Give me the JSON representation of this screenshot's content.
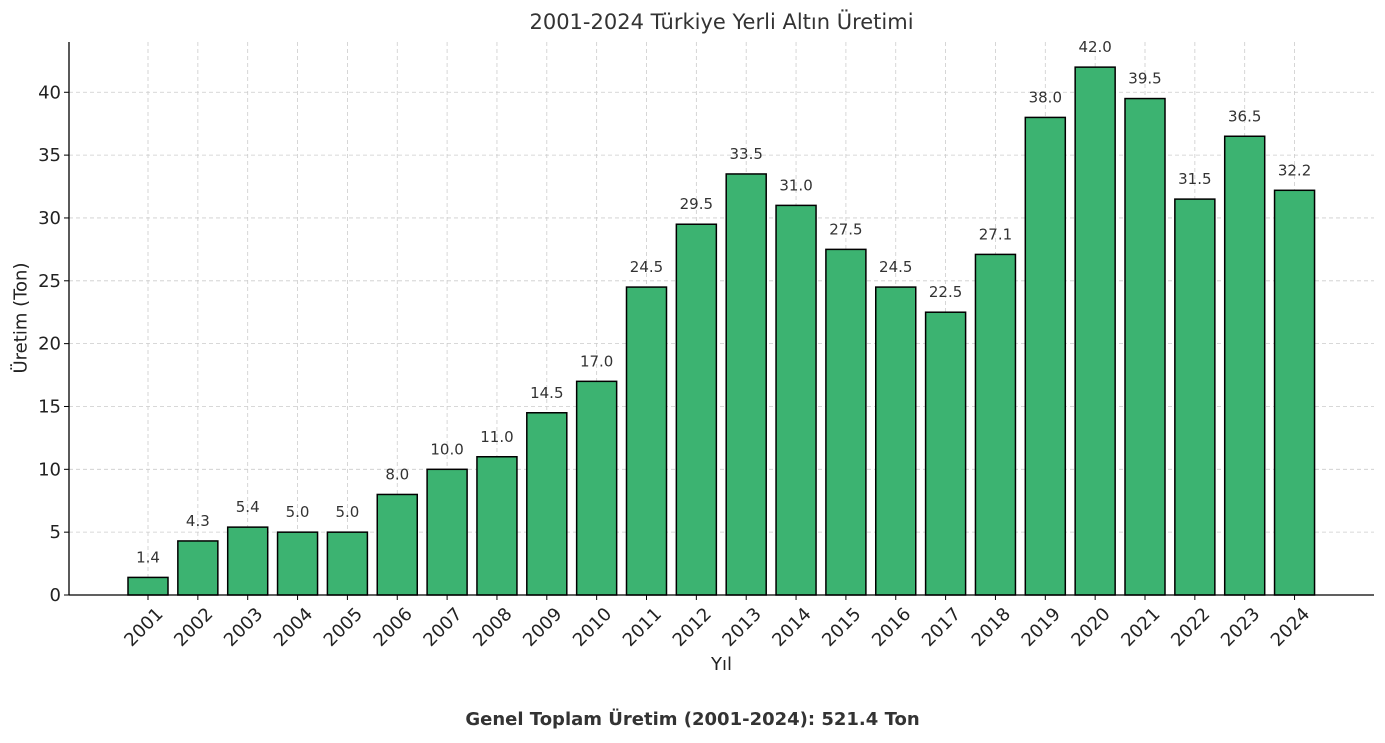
{
  "chart_data": {
    "type": "bar",
    "title": "2001-2024 Türkiye Yerli Altın Üretimi",
    "xlabel": "Yıl",
    "ylabel": "Üretim (Ton)",
    "categories": [
      "2001",
      "2002",
      "2003",
      "2004",
      "2005",
      "2006",
      "2007",
      "2008",
      "2009",
      "2010",
      "2011",
      "2012",
      "2013",
      "2014",
      "2015",
      "2016",
      "2017",
      "2018",
      "2019",
      "2020",
      "2021",
      "2022",
      "2023",
      "2024"
    ],
    "values": [
      1.4,
      4.3,
      5.4,
      5.0,
      5.0,
      8.0,
      10.0,
      11.0,
      14.5,
      17.0,
      24.5,
      29.5,
      33.5,
      31.0,
      27.5,
      24.5,
      22.5,
      27.1,
      38.0,
      42.0,
      39.5,
      31.5,
      36.5,
      32.2
    ],
    "data_labels": [
      "1.4",
      "4.3",
      "5.4",
      "5.0",
      "5.0",
      "8.0",
      "10.0",
      "11.0",
      "14.5",
      "17.0",
      "24.5",
      "29.5",
      "33.5",
      "31.0",
      "27.5",
      "24.5",
      "22.5",
      "27.1",
      "38.0",
      "42.0",
      "39.5",
      "31.5",
      "36.5",
      "32.2"
    ],
    "yticks": [
      0,
      5,
      10,
      15,
      20,
      25,
      30,
      35,
      40
    ],
    "ylim": [
      0,
      44
    ],
    "grid": true,
    "bar_color": "#3cb371",
    "bar_edge_color": "#000000",
    "grid_color": "#cccccc"
  },
  "footer": "Genel Toplam Üretim (2001-2024): 521.4 Ton"
}
